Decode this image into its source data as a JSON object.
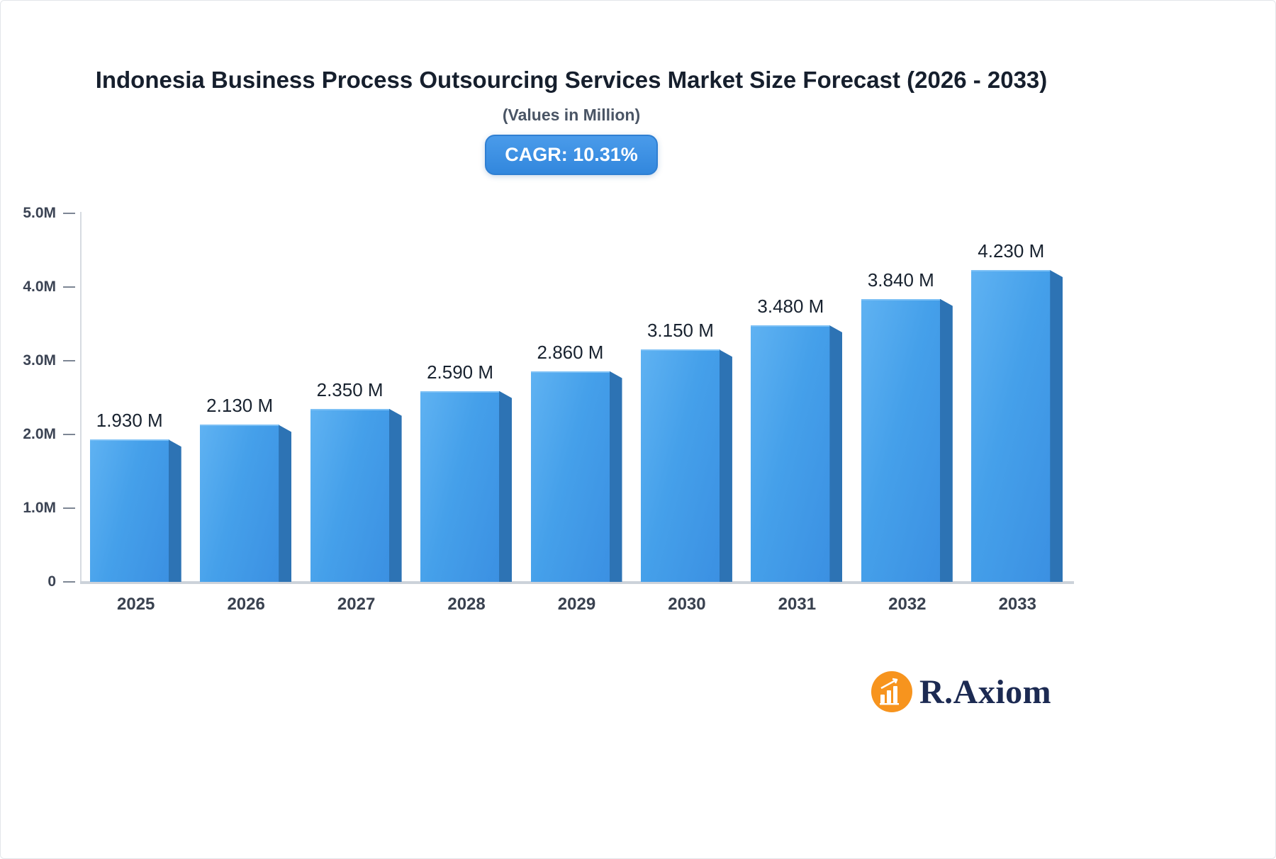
{
  "title": "Indonesia Business Process Outsourcing Services Market Size Forecast (2026 - 2033)",
  "subtitle": "(Values in Million)",
  "cagr_label": "CAGR: 10.31%",
  "brand": {
    "name": "R.Axiom"
  },
  "colors": {
    "bar_face": "#45a0ea",
    "bar_side": "#2d73b4",
    "badge_blue": "#3a8fe2",
    "logo_orange": "#f7941e",
    "logo_navy": "#1c2a52",
    "title_text": "#161f2d",
    "axis_gray": "#ccd2da"
  },
  "chart_data": {
    "type": "bar",
    "title": "Indonesia Business Process Outsourcing Services Market Size Forecast (2026 - 2033)",
    "subtitle": "(Values in Million)",
    "categories": [
      "2025",
      "2026",
      "2027",
      "2028",
      "2029",
      "2030",
      "2031",
      "2032",
      "2033"
    ],
    "values": [
      1.93,
      2.13,
      2.35,
      2.59,
      2.86,
      3.15,
      3.48,
      3.84,
      4.23
    ],
    "labels": [
      "1.930 M",
      "2.130 M",
      "2.350 M",
      "2.590 M",
      "2.860 M",
      "3.150 M",
      "3.480 M",
      "3.840 M",
      "4.230 M"
    ],
    "xlabel": "",
    "ylabel": "",
    "unit": "Million",
    "cagr": "10.31%",
    "ylim": [
      0,
      5
    ],
    "grid": false,
    "legend": null,
    "yticks": [
      {
        "value": 0,
        "label": "0"
      },
      {
        "value": 1,
        "label": "1.0M"
      },
      {
        "value": 2,
        "label": "2.0M"
      },
      {
        "value": 3,
        "label": "3.0M"
      },
      {
        "value": 4,
        "label": "4.0M"
      },
      {
        "value": 5,
        "label": "5.0M"
      }
    ]
  }
}
